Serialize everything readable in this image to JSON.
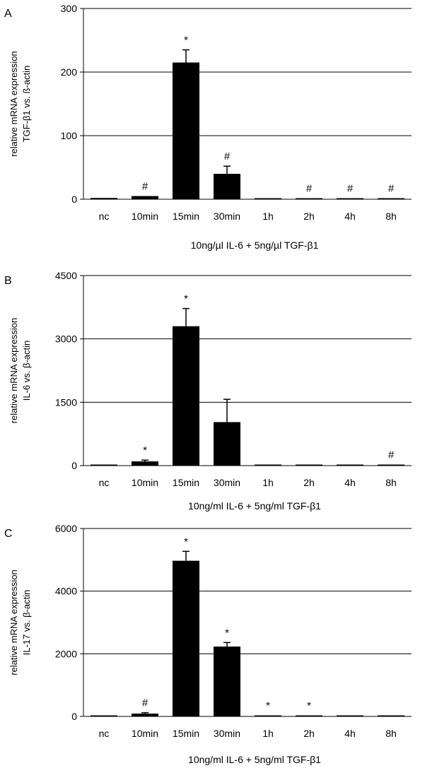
{
  "chart_data": [
    {
      "panel_label": "A",
      "type": "bar",
      "categories": [
        "nc",
        "10min",
        "15min",
        "30min",
        "1h",
        "2h",
        "4h",
        "8h"
      ],
      "values": [
        2,
        5,
        215,
        40,
        1,
        1,
        1,
        1
      ],
      "errors": [
        0,
        0,
        20,
        12,
        0,
        0,
        0,
        0
      ],
      "annotations": [
        "",
        "#",
        "*",
        "#",
        "",
        "#",
        "#",
        "#"
      ],
      "ylabel": [
        "relative mRNA expression",
        "TGF-β1 vs. ß-actin"
      ],
      "xlabel": "10ng/µl IL-6 + 5ng/µl TGF-β1",
      "ylim": [
        0,
        300
      ],
      "yticks": [
        "0",
        "100",
        "200",
        "300"
      ],
      "grid": true,
      "bar_color": "#000000"
    },
    {
      "panel_label": "B",
      "type": "bar",
      "categories": [
        "nc",
        "10min",
        "15min",
        "30min",
        "1h",
        "2h",
        "4h",
        "8h"
      ],
      "values": [
        15,
        100,
        3300,
        1030,
        10,
        10,
        10,
        10
      ],
      "errors": [
        0,
        30,
        420,
        540,
        0,
        0,
        0,
        0
      ],
      "annotations": [
        "",
        "*",
        "*",
        "",
        "",
        "",
        "",
        "#"
      ],
      "ylabel": [
        "relative mRNA expression",
        "IL-6 vs. β-actin"
      ],
      "xlabel": "10ng/ml IL-6 + 5ng/ml TGF-β1",
      "ylim": [
        0,
        4500
      ],
      "yticks": [
        "0",
        "1500",
        "3000",
        "4500"
      ],
      "grid": true,
      "bar_color": "#000000"
    },
    {
      "panel_label": "C",
      "type": "bar",
      "categories": [
        "nc",
        "10min",
        "15min",
        "30min",
        "1h",
        "2h",
        "4h",
        "8h"
      ],
      "values": [
        20,
        90,
        4970,
        2230,
        15,
        10,
        10,
        10
      ],
      "errors": [
        0,
        30,
        300,
        130,
        0,
        0,
        0,
        0
      ],
      "annotations": [
        "",
        "#",
        "*",
        "*",
        "*",
        "*",
        "",
        ""
      ],
      "ylabel": [
        "relative mRNA expression",
        "IL-17 vs. β-actin"
      ],
      "xlabel": "10ng/ml IL-6 + 5ng/ml TGF-β1",
      "ylim": [
        0,
        6000
      ],
      "yticks": [
        "0",
        "2000",
        "4000",
        "6000"
      ],
      "grid": true,
      "bar_color": "#000000"
    }
  ]
}
